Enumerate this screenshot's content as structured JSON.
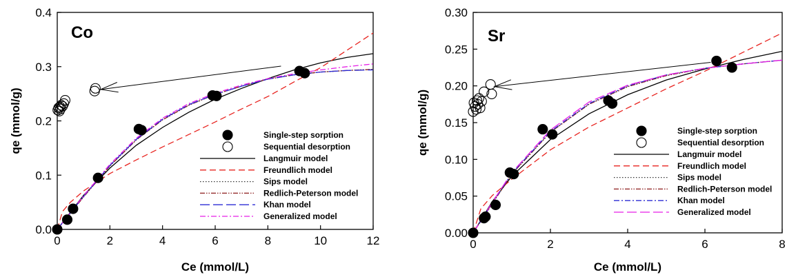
{
  "chart_data": [
    {
      "type": "scatter",
      "panel_label": "Co",
      "xlabel": "Ce (mmol/L)",
      "ylabel": "qe (mmol/g)",
      "xlim": [
        0,
        12
      ],
      "ylim": [
        0,
        0.4
      ],
      "xticks": [
        "0",
        "2",
        "4",
        "6",
        "8",
        "10",
        "12"
      ],
      "yticks": [
        "0.0",
        "0.1",
        "0.2",
        "0.3",
        "0.4"
      ],
      "grid": false,
      "legend_position": "center-right",
      "points": [
        {
          "name": "Single-step sorption",
          "marker": "filled-circle",
          "x": [
            0.0,
            0.38,
            0.6,
            1.55,
            3.1,
            3.2,
            5.9,
            6.05,
            9.2,
            9.4
          ],
          "y": [
            0.0,
            0.018,
            0.038,
            0.095,
            0.185,
            0.183,
            0.247,
            0.246,
            0.292,
            0.288
          ]
        },
        {
          "name": "Sequential desorption",
          "marker": "open-circle",
          "x": [
            0.02,
            0.05,
            0.08,
            0.1,
            0.12,
            0.15,
            0.2,
            0.25,
            0.3,
            1.42,
            1.45
          ],
          "y": [
            0.22,
            0.224,
            0.218,
            0.226,
            0.222,
            0.229,
            0.227,
            0.232,
            0.238,
            0.255,
            0.26
          ]
        }
      ],
      "series": [
        {
          "name": "Langmuir model",
          "color": "#000000",
          "dash": "solid",
          "x": [
            0,
            1,
            2,
            3,
            4,
            5,
            6,
            7,
            8,
            9,
            10,
            11,
            12
          ],
          "y": [
            0,
            0.063,
            0.113,
            0.155,
            0.188,
            0.216,
            0.24,
            0.26,
            0.278,
            0.294,
            0.307,
            0.317,
            0.324
          ]
        },
        {
          "name": "Freundlich model",
          "color": "#e8231f",
          "dash": "dashed",
          "x": [
            0,
            0.2,
            0.5,
            1,
            2,
            3,
            4,
            5,
            6,
            7,
            8,
            9,
            10,
            11,
            12
          ],
          "y": [
            0,
            0.033,
            0.05,
            0.071,
            0.103,
            0.128,
            0.152,
            0.175,
            0.198,
            0.222,
            0.245,
            0.272,
            0.298,
            0.33,
            0.362
          ]
        },
        {
          "name": "Sips model",
          "color": "#333333",
          "dash": "dotted",
          "x": [
            0,
            1,
            2,
            3,
            4,
            5,
            6,
            7,
            8,
            9,
            10,
            11,
            12
          ],
          "y": [
            0,
            0.06,
            0.117,
            0.165,
            0.202,
            0.229,
            0.249,
            0.264,
            0.277,
            0.285,
            0.29,
            0.293,
            0.295
          ]
        },
        {
          "name": "Redlich-Peterson model",
          "color": "#8b1a1a",
          "dash": "dash-dot-dot",
          "x": [
            0,
            1,
            2,
            3,
            4,
            5,
            6,
            7,
            8,
            9,
            10,
            11,
            12
          ],
          "y": [
            0,
            0.06,
            0.117,
            0.165,
            0.202,
            0.229,
            0.249,
            0.264,
            0.277,
            0.285,
            0.29,
            0.293,
            0.295
          ]
        },
        {
          "name": "Khan model",
          "color": "#2b2bd4",
          "dash": "long-dash",
          "x": [
            0,
            1,
            2,
            3,
            4,
            5,
            6,
            7,
            8,
            9,
            10,
            11,
            12
          ],
          "y": [
            0,
            0.061,
            0.118,
            0.166,
            0.203,
            0.23,
            0.249,
            0.264,
            0.277,
            0.285,
            0.29,
            0.293,
            0.294
          ]
        },
        {
          "name": "Generalized model",
          "color": "#e61ee6",
          "dash": "dash-dot",
          "x": [
            0,
            1,
            2,
            3,
            4,
            5,
            6,
            7,
            8,
            9,
            10,
            11,
            12
          ],
          "y": [
            0,
            0.062,
            0.12,
            0.168,
            0.205,
            0.232,
            0.251,
            0.266,
            0.278,
            0.287,
            0.294,
            0.3,
            0.305
          ]
        }
      ],
      "annotation_arrow": {
        "from": [
          8.5,
          0.301
        ],
        "to": [
          1.65,
          0.258
        ]
      }
    },
    {
      "type": "scatter",
      "panel_label": "Sr",
      "xlabel": "Ce (mmol/L)",
      "ylabel": "qe (mmol/g)",
      "xlim": [
        0,
        8
      ],
      "ylim": [
        0,
        0.3
      ],
      "xticks": [
        "0",
        "2",
        "4",
        "6",
        "8"
      ],
      "yticks": [
        "0.00",
        "0.05",
        "0.10",
        "0.15",
        "0.20",
        "0.25",
        "0.30"
      ],
      "grid": false,
      "legend_position": "center-right",
      "points": [
        {
          "name": "Single-step sorption",
          "marker": "filled-circle",
          "x": [
            0.0,
            0.28,
            0.32,
            0.58,
            0.95,
            1.05,
            1.8,
            2.05,
            3.5,
            3.6,
            6.3,
            6.7
          ],
          "y": [
            0.0,
            0.02,
            0.022,
            0.038,
            0.082,
            0.08,
            0.141,
            0.134,
            0.18,
            0.176,
            0.234,
            0.225
          ]
        },
        {
          "name": "Sequential desorption",
          "marker": "open-circle",
          "x": [
            0.0,
            0.02,
            0.05,
            0.08,
            0.1,
            0.12,
            0.15,
            0.18,
            0.22,
            0.28,
            0.45,
            0.48
          ],
          "y": [
            0.165,
            0.177,
            0.172,
            0.168,
            0.18,
            0.175,
            0.183,
            0.17,
            0.179,
            0.192,
            0.202,
            0.189
          ]
        }
      ],
      "series": [
        {
          "name": "Langmuir model",
          "color": "#000000",
          "dash": "solid",
          "x": [
            0,
            0.5,
            1,
            2,
            3,
            4,
            5,
            6,
            7,
            8
          ],
          "y": [
            0,
            0.043,
            0.077,
            0.127,
            0.162,
            0.188,
            0.208,
            0.223,
            0.236,
            0.247
          ]
        },
        {
          "name": "Freundlich model",
          "color": "#e8231f",
          "dash": "dashed",
          "x": [
            0,
            0.2,
            0.5,
            1,
            2,
            3,
            4,
            5,
            6,
            7,
            8
          ],
          "y": [
            0,
            0.033,
            0.051,
            0.073,
            0.113,
            0.144,
            0.17,
            0.196,
            0.22,
            0.246,
            0.272
          ]
        },
        {
          "name": "Sips model",
          "color": "#333333",
          "dash": "dotted",
          "x": [
            0,
            0.5,
            1,
            2,
            3,
            4,
            5,
            6,
            7,
            8
          ],
          "y": [
            0,
            0.04,
            0.08,
            0.137,
            0.175,
            0.199,
            0.214,
            0.224,
            0.23,
            0.235
          ]
        },
        {
          "name": "Redlich-Peterson model",
          "color": "#8b1a1a",
          "dash": "dash-dot-dot",
          "x": [
            0,
            0.5,
            1,
            2,
            3,
            4,
            5,
            6,
            7,
            8
          ],
          "y": [
            0,
            0.04,
            0.08,
            0.137,
            0.175,
            0.199,
            0.214,
            0.224,
            0.23,
            0.235
          ]
        },
        {
          "name": "Khan model",
          "color": "#2b2bd4",
          "dash": "dash-dot",
          "x": [
            0,
            0.5,
            1,
            2,
            3,
            4,
            5,
            6,
            7,
            8
          ],
          "y": [
            0,
            0.041,
            0.081,
            0.138,
            0.176,
            0.2,
            0.215,
            0.224,
            0.23,
            0.235
          ]
        },
        {
          "name": "Generalized model",
          "color": "#e61ee6",
          "dash": "long-dash",
          "x": [
            0,
            0.5,
            1,
            2,
            3,
            4,
            5,
            6,
            7,
            8
          ],
          "y": [
            0,
            0.042,
            0.082,
            0.14,
            0.178,
            0.201,
            0.215,
            0.224,
            0.23,
            0.235
          ]
        }
      ],
      "annotation_arrow": {
        "from": [
          6.15,
          0.232
        ],
        "to": [
          0.55,
          0.199
        ]
      }
    }
  ]
}
